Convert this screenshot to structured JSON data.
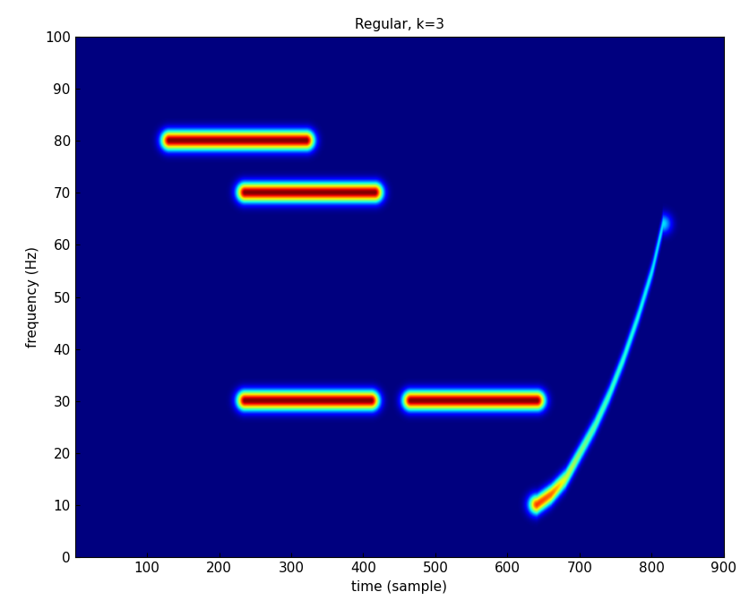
{
  "chart_data": {
    "type": "heatmap",
    "title": "Regular, k=3",
    "x_label": "time (sample)",
    "y_label": "frequency (Hz)",
    "xlim": [
      0,
      900
    ],
    "xticks": [
      100,
      200,
      300,
      400,
      500,
      600,
      700,
      800,
      900
    ],
    "ylim": [
      0,
      100
    ],
    "yticks": [
      0,
      10,
      20,
      30,
      40,
      50,
      60,
      70,
      80,
      90,
      100
    ],
    "value_range": [
      0,
      1
    ],
    "components": [
      {
        "t": [
          130,
          320
        ],
        "f": [
          80,
          80
        ],
        "values": [
          1.0,
          1.0
        ]
      },
      {
        "t": [
          235,
          415
        ],
        "f": [
          70,
          70
        ],
        "values": [
          1.0,
          1.0
        ]
      },
      {
        "t": [
          235,
          410
        ],
        "f": [
          30,
          30
        ],
        "values": [
          1.0,
          1.0
        ]
      },
      {
        "t": [
          465,
          640
        ],
        "f": [
          30,
          30
        ],
        "values": [
          1.0,
          1.0
        ]
      },
      {
        "t": [
          640,
          660,
          680,
          700,
          720,
          740,
          760,
          780,
          800,
          815
        ],
        "f": [
          10,
          12,
          15,
          20,
          25,
          31,
          38,
          46,
          55,
          64
        ],
        "values": [
          0.85,
          0.8,
          0.6,
          0.5,
          0.45,
          0.42,
          0.4,
          0.38,
          0.36,
          0.35
        ]
      }
    ]
  }
}
